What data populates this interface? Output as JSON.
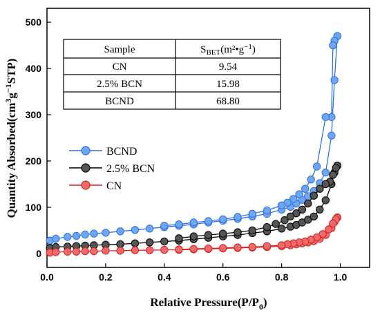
{
  "chart_data": {
    "type": "scatter",
    "xlabel_main": "Relative Pressure(P/P",
    "xlabel_sub": "0",
    "xlabel_end": ")",
    "ylabel_main": "Quantity Absorbed(cm",
    "ylabel_sup1": "3",
    "ylabel_mid": "g",
    "ylabel_sup2": "−1",
    "ylabel_end": "STP)",
    "xlim": [
      0.0,
      1.1
    ],
    "ylim": [
      -30,
      530
    ],
    "x_ticks": [
      {
        "v": 0.0,
        "label": "0.0"
      },
      {
        "v": 0.2,
        "label": "0.2"
      },
      {
        "v": 0.4,
        "label": "0.4"
      },
      {
        "v": 0.6,
        "label": "0.6"
      },
      {
        "v": 0.8,
        "label": "0.8"
      },
      {
        "v": 1.0,
        "label": "1.0"
      }
    ],
    "y_ticks": [
      {
        "v": 0,
        "label": "0"
      },
      {
        "v": 100,
        "label": "100"
      },
      {
        "v": 200,
        "label": "200"
      },
      {
        "v": 300,
        "label": "300"
      },
      {
        "v": 400,
        "label": "400"
      },
      {
        "v": 500,
        "label": "500"
      }
    ],
    "legend_position": "middle-left",
    "series": [
      {
        "name": "BCND",
        "color": "#2f6fe0",
        "fill": "#6fa6f2",
        "adsorption": [
          [
            0.01,
            28
          ],
          [
            0.03,
            32
          ],
          [
            0.07,
            36
          ],
          [
            0.1,
            38
          ],
          [
            0.13,
            41
          ],
          [
            0.16,
            43
          ],
          [
            0.2,
            45
          ],
          [
            0.25,
            48
          ],
          [
            0.3,
            51
          ],
          [
            0.35,
            54
          ],
          [
            0.4,
            57
          ],
          [
            0.45,
            60
          ],
          [
            0.5,
            63
          ],
          [
            0.55,
            67
          ],
          [
            0.6,
            71
          ],
          [
            0.65,
            75
          ],
          [
            0.7,
            80
          ],
          [
            0.75,
            86
          ],
          [
            0.8,
            95
          ],
          [
            0.83,
            101
          ],
          [
            0.85,
            108
          ],
          [
            0.87,
            116
          ],
          [
            0.89,
            124
          ],
          [
            0.91,
            135
          ],
          [
            0.93,
            152
          ],
          [
            0.95,
            175
          ],
          [
            0.97,
            255
          ],
          [
            0.98,
            375
          ],
          [
            0.99,
            470
          ]
        ],
        "desorption": [
          [
            0.99,
            470
          ],
          [
            0.98,
            460
          ],
          [
            0.975,
            450
          ],
          [
            0.97,
            295
          ],
          [
            0.95,
            295
          ],
          [
            0.92,
            188
          ],
          [
            0.9,
            160
          ],
          [
            0.88,
            140
          ],
          [
            0.86,
            128
          ],
          [
            0.84,
            118
          ],
          [
            0.82,
            110
          ],
          [
            0.8,
            104
          ],
          [
            0.75,
            93
          ],
          [
            0.7,
            86
          ],
          [
            0.65,
            79
          ],
          [
            0.6,
            74
          ],
          [
            0.55,
            70
          ],
          [
            0.5,
            67
          ],
          [
            0.45,
            63
          ],
          [
            0.4,
            60
          ]
        ]
      },
      {
        "name": "2.5% BCN",
        "color": "#000000",
        "fill": "#555555",
        "adsorption": [
          [
            0.01,
            12
          ],
          [
            0.03,
            14
          ],
          [
            0.07,
            15
          ],
          [
            0.1,
            16
          ],
          [
            0.13,
            17
          ],
          [
            0.16,
            18
          ],
          [
            0.2,
            19
          ],
          [
            0.25,
            20
          ],
          [
            0.3,
            22
          ],
          [
            0.35,
            24
          ],
          [
            0.4,
            26
          ],
          [
            0.45,
            28
          ],
          [
            0.5,
            31
          ],
          [
            0.55,
            34
          ],
          [
            0.6,
            37
          ],
          [
            0.65,
            40
          ],
          [
            0.7,
            44
          ],
          [
            0.75,
            48
          ],
          [
            0.8,
            54
          ],
          [
            0.83,
            58
          ],
          [
            0.85,
            62
          ],
          [
            0.87,
            67
          ],
          [
            0.89,
            73
          ],
          [
            0.91,
            80
          ],
          [
            0.93,
            95
          ],
          [
            0.95,
            115
          ],
          [
            0.97,
            150
          ],
          [
            0.98,
            175
          ],
          [
            0.99,
            190
          ]
        ],
        "desorption": [
          [
            0.99,
            190
          ],
          [
            0.985,
            185
          ],
          [
            0.975,
            170
          ],
          [
            0.965,
            155
          ],
          [
            0.95,
            150
          ],
          [
            0.93,
            140
          ],
          [
            0.91,
            125
          ],
          [
            0.89,
            108
          ],
          [
            0.87,
            95
          ],
          [
            0.85,
            87
          ],
          [
            0.83,
            80
          ],
          [
            0.81,
            72
          ],
          [
            0.78,
            64
          ],
          [
            0.75,
            57
          ],
          [
            0.7,
            50
          ],
          [
            0.65,
            46
          ],
          [
            0.6,
            43
          ],
          [
            0.55,
            40
          ],
          [
            0.5,
            37
          ],
          [
            0.45,
            33
          ]
        ]
      },
      {
        "name": "CN",
        "color": "#d42020",
        "fill": "#ee6a6a",
        "adsorption": [
          [
            0.01,
            2
          ],
          [
            0.03,
            3
          ],
          [
            0.07,
            4
          ],
          [
            0.1,
            4
          ],
          [
            0.13,
            5
          ],
          [
            0.16,
            5
          ],
          [
            0.2,
            6
          ],
          [
            0.25,
            6
          ],
          [
            0.3,
            7
          ],
          [
            0.35,
            7
          ],
          [
            0.4,
            8
          ],
          [
            0.45,
            8
          ],
          [
            0.5,
            9
          ],
          [
            0.55,
            10
          ],
          [
            0.6,
            11
          ],
          [
            0.65,
            12
          ],
          [
            0.7,
            13
          ],
          [
            0.75,
            14
          ],
          [
            0.8,
            16
          ],
          [
            0.83,
            18
          ],
          [
            0.85,
            20
          ],
          [
            0.87,
            22
          ],
          [
            0.89,
            24
          ],
          [
            0.91,
            27
          ],
          [
            0.93,
            32
          ],
          [
            0.95,
            40
          ],
          [
            0.97,
            55
          ],
          [
            0.98,
            68
          ],
          [
            0.99,
            78
          ]
        ],
        "desorption": [
          [
            0.99,
            78
          ],
          [
            0.985,
            74
          ],
          [
            0.975,
            65
          ],
          [
            0.96,
            52
          ],
          [
            0.94,
            42
          ],
          [
            0.92,
            35
          ],
          [
            0.9,
            30
          ],
          [
            0.88,
            26
          ],
          [
            0.86,
            24
          ],
          [
            0.84,
            22
          ],
          [
            0.82,
            20
          ],
          [
            0.8,
            18
          ],
          [
            0.75,
            16
          ],
          [
            0.7,
            14
          ],
          [
            0.65,
            13
          ],
          [
            0.6,
            12
          ],
          [
            0.55,
            11
          ],
          [
            0.5,
            10
          ],
          [
            0.45,
            9
          ]
        ]
      }
    ]
  },
  "table": {
    "header_sample": "Sample",
    "header_sbet_main": "S",
    "header_sbet_sub": "BET",
    "header_sbet_unit": "(m²•g",
    "header_sbet_sup": "−1",
    "header_sbet_end": ")",
    "rows": [
      {
        "sample": "CN",
        "value": "9.54"
      },
      {
        "sample": "2.5% BCN",
        "value": "15.98"
      },
      {
        "sample": "BCND",
        "value": "68.80"
      }
    ]
  }
}
